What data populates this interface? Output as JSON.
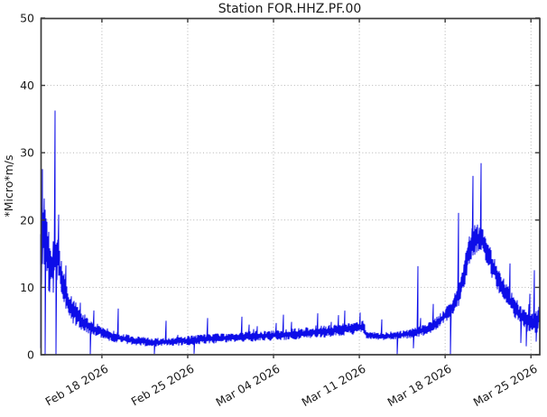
{
  "chart_data": {
    "type": "line",
    "title": "Station FOR.HHZ.PF.00",
    "ylabel": "*Micro*m/s",
    "xlabel": "",
    "ylim": [
      0,
      50
    ],
    "yticks": [
      0,
      10,
      20,
      30,
      40,
      50
    ],
    "x_range_days": [
      0,
      40.72
    ],
    "xticks": [
      {
        "day": 5,
        "label": "Feb 18 2026"
      },
      {
        "day": 12,
        "label": "Feb 25 2026"
      },
      {
        "day": 19,
        "label": "Mar 04 2026"
      },
      {
        "day": 26,
        "label": "Mar 11 2026"
      },
      {
        "day": 33,
        "label": "Mar 18 2026"
      },
      {
        "day": 40,
        "label": "Mar 25 2026"
      }
    ],
    "grid": true,
    "grid_style": "dotted",
    "legend": "none",
    "line_color": "#0d0de8",
    "units_note": "seismic amplitude (RSAM-style) in micro m/s, noisy envelope trace",
    "envelope_mean_band": [
      [
        0.0,
        10,
        9
      ],
      [
        0.15,
        20,
        7
      ],
      [
        0.5,
        16,
        6
      ],
      [
        0.9,
        13,
        4.5
      ],
      [
        1.35,
        15,
        4
      ],
      [
        1.7,
        11,
        3
      ],
      [
        2.1,
        8.5,
        2.3
      ],
      [
        2.6,
        6.5,
        1.8
      ],
      [
        3.2,
        5.2,
        1.4
      ],
      [
        4.0,
        4.2,
        1.1
      ],
      [
        5.0,
        3.3,
        0.9
      ],
      [
        6.0,
        2.7,
        0.8
      ],
      [
        7.5,
        2.1,
        0.65
      ],
      [
        9.0,
        1.85,
        0.6
      ],
      [
        10.5,
        1.9,
        0.6
      ],
      [
        12.0,
        2.1,
        0.65
      ],
      [
        14.0,
        2.4,
        0.7
      ],
      [
        16.0,
        2.6,
        0.7
      ],
      [
        18.0,
        2.8,
        0.75
      ],
      [
        19.0,
        2.9,
        0.75
      ],
      [
        21.0,
        3.1,
        0.8
      ],
      [
        23.0,
        3.4,
        0.85
      ],
      [
        25.0,
        3.8,
        0.9
      ],
      [
        26.4,
        4.15,
        0.9
      ],
      [
        26.55,
        2.9,
        0.55
      ],
      [
        28.0,
        2.75,
        0.55
      ],
      [
        29.5,
        2.95,
        0.6
      ],
      [
        30.5,
        3.25,
        0.7
      ],
      [
        31.5,
        3.8,
        0.85
      ],
      [
        32.3,
        4.7,
        0.95
      ],
      [
        33.0,
        5.8,
        1.0
      ],
      [
        33.6,
        7.2,
        1.2
      ],
      [
        34.1,
        8.8,
        1.5
      ],
      [
        34.5,
        11.5,
        2.0
      ],
      [
        34.9,
        15.0,
        2.5
      ],
      [
        35.3,
        17.0,
        2.2
      ],
      [
        35.9,
        17.3,
        2.2
      ],
      [
        36.3,
        15.8,
        2.0
      ],
      [
        36.8,
        13.5,
        2.0
      ],
      [
        37.4,
        11.0,
        1.8
      ],
      [
        38.0,
        9.0,
        1.6
      ],
      [
        38.6,
        7.2,
        1.5
      ],
      [
        39.2,
        5.8,
        1.5
      ],
      [
        39.8,
        4.8,
        1.5
      ],
      [
        40.3,
        4.6,
        1.6
      ],
      [
        40.72,
        5.5,
        1.8
      ]
    ],
    "spikes": [
      [
        0.18,
        27.5
      ],
      [
        1.18,
        36.2
      ],
      [
        6.3,
        6.8
      ],
      [
        10.2,
        5.0
      ],
      [
        13.6,
        5.4
      ],
      [
        16.4,
        5.6
      ],
      [
        19.8,
        5.9
      ],
      [
        22.6,
        6.1
      ],
      [
        24.8,
        6.5
      ],
      [
        27.8,
        5.2
      ],
      [
        30.8,
        13.1
      ],
      [
        32.0,
        7.5
      ],
      [
        34.1,
        21.0
      ],
      [
        35.3,
        26.5
      ],
      [
        35.95,
        28.4
      ],
      [
        36.7,
        15.4
      ],
      [
        38.3,
        13.5
      ],
      [
        39.9,
        9.0
      ],
      [
        40.3,
        12.5
      ]
    ],
    "dips": [
      [
        0.35,
        0
      ],
      [
        1.28,
        0
      ],
      [
        4.05,
        0
      ],
      [
        9.3,
        0.15
      ],
      [
        12.5,
        0.2
      ],
      [
        29.1,
        0
      ],
      [
        30.4,
        1.0
      ],
      [
        33.4,
        0
      ],
      [
        39.2,
        1.8
      ],
      [
        39.6,
        1.3
      ],
      [
        40.45,
        2.0
      ]
    ]
  },
  "colors": {
    "trace": "#0d0de8",
    "grid": "#b3b3b3",
    "spine": "#3a3a3a",
    "text": "#1a1a1a"
  }
}
